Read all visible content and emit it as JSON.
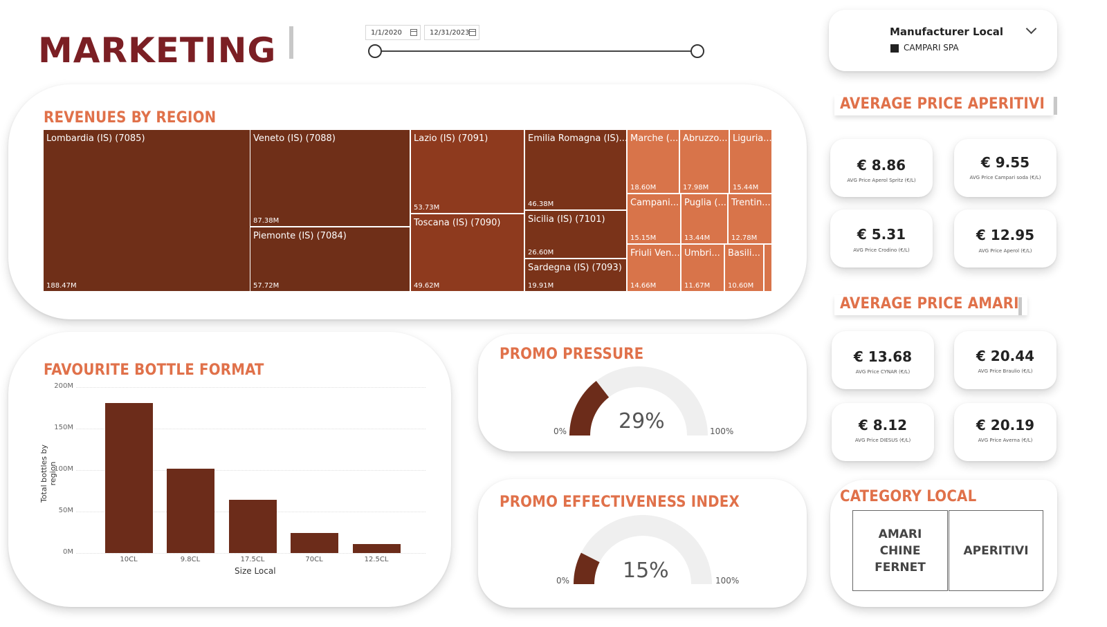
{
  "header": {
    "title": "MARKETING",
    "date_start": "1/1/2020",
    "date_end": "12/31/2023"
  },
  "manufacturer": {
    "title": "Manufacturer Local",
    "selected": "CAMPARI SPA"
  },
  "revenues": {
    "title": "REVENUES BY REGION",
    "tiles": [
      {
        "label": "Lombardia (IS) (7085)",
        "value": "188.47M",
        "color": "#6f2f18"
      },
      {
        "label": "Veneto (IS) (7088)",
        "value": "87.38M",
        "color": "#6f2f18"
      },
      {
        "label": "Piemonte (IS) (7084)",
        "value": "57.72M",
        "color": "#6f2f18"
      },
      {
        "label": "Lazio (IS) (7091)",
        "value": "53.73M",
        "color": "#8e3a1e"
      },
      {
        "label": "Toscana (IS) (7090)",
        "value": "49.62M",
        "color": "#8e3a1e"
      },
      {
        "label": "Emilia Romagna (IS)...",
        "value": "46.38M",
        "color": "#7a3319"
      },
      {
        "label": "Sicilia (IS) (7101)",
        "value": "26.60M",
        "color": "#7a3319"
      },
      {
        "label": "Sardegna (IS) (7093)",
        "value": "19.91M",
        "color": "#7a3319"
      },
      {
        "label": "Marche (...",
        "value": "18.60M",
        "color": "#d8744a"
      },
      {
        "label": "Abruzzo...",
        "value": "17.98M",
        "color": "#d8744a"
      },
      {
        "label": "Liguria...",
        "value": "15.44M",
        "color": "#d8744a"
      },
      {
        "label": "Campani...",
        "value": "15.15M",
        "color": "#d8744a"
      },
      {
        "label": "Puglia (...",
        "value": "13.44M",
        "color": "#d8744a"
      },
      {
        "label": "Trentin...",
        "value": "12.78M",
        "color": "#d8744a"
      },
      {
        "label": "Friuli Ven...",
        "value": "14.66M",
        "color": "#d8744a"
      },
      {
        "label": "Umbri...",
        "value": "11.67M",
        "color": "#d8744a"
      },
      {
        "label": "Basili...",
        "value": "10.60M",
        "color": "#d8744a"
      },
      {
        "label": "",
        "value": "",
        "color": "#d8744a"
      }
    ]
  },
  "bottle": {
    "title": "FAVOURITE BOTTLE FORMAT",
    "chart_data": {
      "type": "bar",
      "categories": [
        "10CL",
        "9.8CL",
        "17.5CL",
        "70CL",
        "12.5CL"
      ],
      "values": [
        181,
        102,
        64,
        24,
        11
      ],
      "xlabel": "Size Local",
      "ylabel": "Total bottles by region",
      "ylim": [
        0,
        200
      ],
      "yticks": [
        "0M",
        "50M",
        "100M",
        "150M",
        "200M"
      ],
      "bar_color": "#6c2c1a",
      "grid": true
    }
  },
  "promo_pressure": {
    "title": "PROMO PRESSURE",
    "value": "29%",
    "fraction": 0.29,
    "min": "0%",
    "max": "100%"
  },
  "promo_effectiveness": {
    "title": "PROMO EFFECTIVENESS INDEX",
    "value": "15%",
    "fraction": 0.15,
    "min": "0%",
    "max": "100%"
  },
  "aperitivi": {
    "title": "AVERAGE PRICE APERITIVI",
    "cards": [
      {
        "value": "€ 8.86",
        "label": "AVG Price Aperol Spritz (€/L)"
      },
      {
        "value": "€ 9.55",
        "label": "AVG Price Campari soda (€/L)"
      },
      {
        "value": "€ 5.31",
        "label": "AVG Price Crodino (€/L)"
      },
      {
        "value": "€ 12.95",
        "label": "AVG Price Aperol (€/L)"
      }
    ]
  },
  "amari": {
    "title": "AVERAGE PRICE AMARI",
    "cards": [
      {
        "value": "€ 13.68",
        "label": "AVG Price CYNAR (€/L)"
      },
      {
        "value": "€ 20.44",
        "label": "AVG Price Braulio (€/L)"
      },
      {
        "value": "€ 8.12",
        "label": "AVG Price DIESUS (€/L)"
      },
      {
        "value": "€ 20.19",
        "label": "AVG Price Averna (€/L)"
      }
    ]
  },
  "category": {
    "title": "CATEGORY LOCAL",
    "items": [
      "AMARI CHINE FERNET",
      "APERITIVI"
    ]
  },
  "colors": {
    "accent": "#e0714a",
    "title": "#7b1f24",
    "gauge_fill": "#6c2c1a",
    "gauge_track": "#efefef"
  }
}
